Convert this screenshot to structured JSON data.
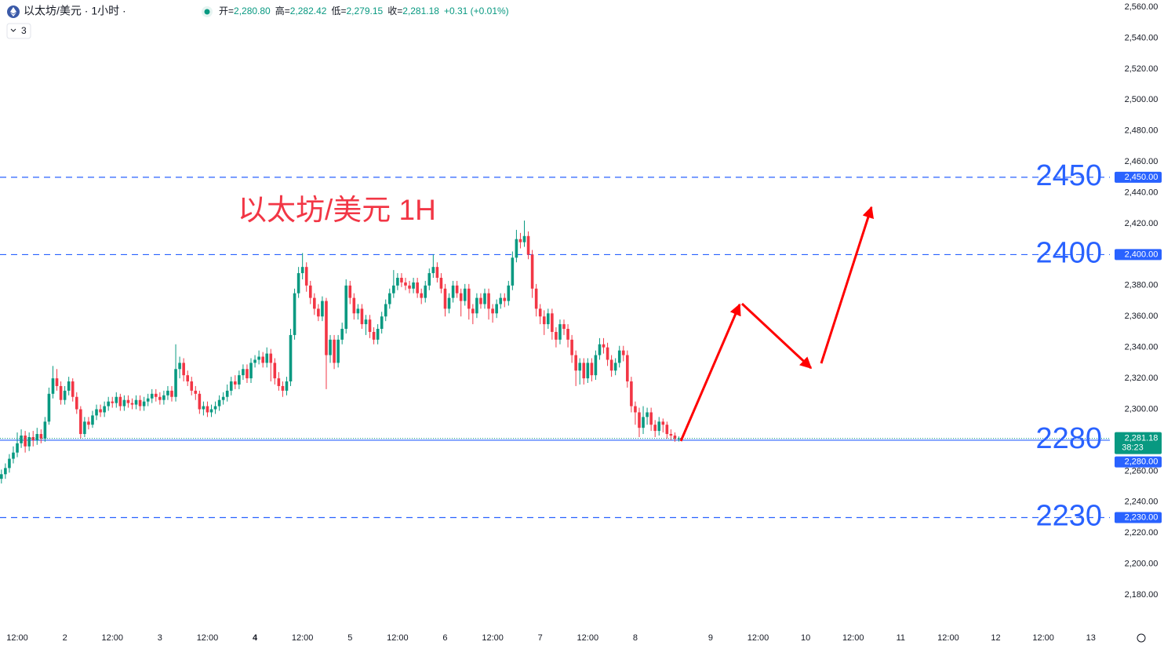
{
  "header": {
    "symbol": "以太坊/美元 · 1小时 ·",
    "indicators": "3",
    "ohlc": [
      {
        "k": "开=",
        "v": "2,280.80"
      },
      {
        "k": "高=",
        "v": "2,282.42"
      },
      {
        "k": "低=",
        "v": "2,279.15"
      },
      {
        "k": "收=",
        "v": "2,281.18"
      }
    ],
    "change": "+0.31 (+0.01%)"
  },
  "chart_data": {
    "type": "candlestick",
    "annotation": "以太坊/美元 1H",
    "up_color": "#089981",
    "down_color": "#f23645",
    "x": [
      -4,
      -3,
      -2,
      -1,
      0,
      1,
      2,
      3,
      4,
      5,
      6,
      7,
      8,
      9,
      10,
      11,
      12,
      13,
      14,
      15,
      16,
      17,
      18,
      19,
      20,
      21,
      22,
      23,
      24,
      25,
      26,
      27,
      28,
      29,
      30,
      31,
      32,
      33,
      34,
      35,
      36,
      37,
      38,
      39,
      40,
      41,
      42,
      43,
      44,
      45,
      46,
      47,
      48,
      49,
      50,
      51,
      52,
      53,
      54,
      55,
      56,
      57,
      58,
      59,
      60,
      61,
      62,
      63,
      64,
      65,
      66,
      67,
      68,
      69,
      70,
      71,
      72,
      73,
      74,
      75,
      76,
      77,
      78,
      79,
      80,
      81,
      82,
      83,
      84,
      85,
      86,
      87,
      88,
      89,
      90,
      91,
      92,
      93,
      94,
      95,
      96,
      97,
      98,
      99,
      100,
      101,
      102,
      103,
      104,
      105,
      106,
      107,
      108,
      109,
      110,
      111,
      112,
      113,
      114,
      115,
      116,
      117,
      118,
      119,
      120,
      121,
      122,
      123,
      124,
      125,
      126,
      127,
      128,
      129,
      130,
      131,
      132,
      133,
      134,
      135,
      136,
      137,
      138,
      139,
      140,
      141,
      142,
      143,
      144,
      145,
      146,
      147,
      148,
      149,
      150,
      151,
      152,
      153,
      154,
      155,
      156,
      157,
      158,
      159,
      160,
      161,
      162,
      163,
      164,
      165,
      166,
      167
    ],
    "open": [
      2255,
      2258,
      2262,
      2268,
      2272,
      2278,
      2283,
      2276,
      2282,
      2280,
      2284,
      2281,
      2292,
      2310,
      2320,
      2315,
      2306,
      2312,
      2318,
      2308,
      2300,
      2284,
      2292,
      2290,
      2296,
      2300,
      2298,
      2302,
      2305,
      2304,
      2308,
      2302,
      2306,
      2304,
      2303,
      2306,
      2302,
      2305,
      2307,
      2310,
      2308,
      2306,
      2309,
      2312,
      2308,
      2326,
      2330,
      2322,
      2318,
      2312,
      2310,
      2300,
      2302,
      2298,
      2300,
      2302,
      2306,
      2308,
      2312,
      2318,
      2316,
      2322,
      2326,
      2320,
      2330,
      2332,
      2334,
      2330,
      2336,
      2330,
      2320,
      2315,
      2312,
      2318,
      2348,
      2375,
      2388,
      2392,
      2380,
      2372,
      2365,
      2360,
      2370,
      2335,
      2345,
      2330,
      2345,
      2352,
      2380,
      2372,
      2362,
      2365,
      2355,
      2358,
      2350,
      2345,
      2352,
      2360,
      2368,
      2375,
      2380,
      2385,
      2382,
      2380,
      2378,
      2382,
      2375,
      2372,
      2380,
      2388,
      2392,
      2385,
      2378,
      2365,
      2372,
      2380,
      2375,
      2370,
      2378,
      2365,
      2362,
      2372,
      2368,
      2375,
      2365,
      2362,
      2368,
      2372,
      2370,
      2380,
      2398,
      2410,
      2408,
      2412,
      2400,
      2378,
      2365,
      2360,
      2355,
      2362,
      2350,
      2345,
      2355,
      2352,
      2345,
      2335,
      2325,
      2330,
      2320,
      2330,
      2322,
      2335,
      2342,
      2340,
      2332,
      2325,
      2330,
      2338,
      2335,
      2318,
      2302,
      2298,
      2288,
      2295,
      2298,
      2290,
      2286,
      2292,
      2290,
      2284,
      2283,
      2280.8
    ],
    "high": [
      2261,
      2265,
      2271,
      2276,
      2285,
      2287,
      2286,
      2285,
      2286,
      2288,
      2287,
      2295,
      2314,
      2328,
      2326,
      2318,
      2315,
      2321,
      2320,
      2311,
      2302,
      2295,
      2295,
      2299,
      2303,
      2303,
      2305,
      2308,
      2308,
      2311,
      2310,
      2309,
      2309,
      2307,
      2309,
      2309,
      2308,
      2310,
      2313,
      2313,
      2311,
      2312,
      2315,
      2315,
      2342,
      2334,
      2333,
      2325,
      2321,
      2315,
      2312,
      2305,
      2305,
      2303,
      2305,
      2309,
      2311,
      2316,
      2321,
      2322,
      2325,
      2329,
      2329,
      2333,
      2335,
      2338,
      2337,
      2340,
      2339,
      2333,
      2324,
      2318,
      2321,
      2352,
      2378,
      2392,
      2401,
      2395,
      2383,
      2375,
      2368,
      2373,
      2372,
      2348,
      2348,
      2348,
      2356,
      2384,
      2383,
      2375,
      2368,
      2368,
      2361,
      2361,
      2353,
      2355,
      2363,
      2371,
      2378,
      2390,
      2388,
      2388,
      2385,
      2383,
      2385,
      2385,
      2378,
      2383,
      2391,
      2400,
      2395,
      2388,
      2381,
      2375,
      2383,
      2383,
      2378,
      2381,
      2381,
      2368,
      2375,
      2375,
      2378,
      2378,
      2368,
      2371,
      2375,
      2375,
      2383,
      2402,
      2416,
      2414,
      2422,
      2415,
      2403,
      2381,
      2368,
      2364,
      2365,
      2365,
      2353,
      2358,
      2358,
      2355,
      2348,
      2338,
      2333,
      2333,
      2333,
      2333,
      2338,
      2346,
      2346,
      2343,
      2335,
      2333,
      2341,
      2341,
      2338,
      2321,
      2305,
      2301,
      2302,
      2301,
      2301,
      2293,
      2295,
      2294,
      2292,
      2287,
      2285,
      2282.42
    ],
    "low": [
      2252,
      2255,
      2259,
      2265,
      2269,
      2275,
      2272,
      2273,
      2276,
      2277,
      2278,
      2279,
      2290,
      2307,
      2312,
      2303,
      2303,
      2309,
      2305,
      2297,
      2281,
      2282,
      2287,
      2288,
      2293,
      2295,
      2295,
      2299,
      2301,
      2301,
      2299,
      2299,
      2301,
      2300,
      2300,
      2299,
      2299,
      2302,
      2304,
      2305,
      2303,
      2303,
      2306,
      2305,
      2305,
      2320,
      2318,
      2315,
      2309,
      2306,
      2297,
      2296,
      2295,
      2295,
      2297,
      2299,
      2303,
      2305,
      2309,
      2313,
      2313,
      2319,
      2317,
      2317,
      2327,
      2329,
      2327,
      2327,
      2318,
      2316,
      2312,
      2308,
      2309,
      2315,
      2345,
      2372,
      2384,
      2376,
      2368,
      2361,
      2357,
      2357,
      2313,
      2330,
      2326,
      2327,
      2342,
      2349,
      2368,
      2358,
      2358,
      2352,
      2348,
      2346,
      2342,
      2342,
      2349,
      2357,
      2365,
      2372,
      2377,
      2379,
      2377,
      2375,
      2375,
      2372,
      2368,
      2369,
      2377,
      2385,
      2382,
      2375,
      2360,
      2362,
      2369,
      2372,
      2360,
      2367,
      2358,
      2355,
      2359,
      2365,
      2365,
      2358,
      2356,
      2359,
      2365,
      2366,
      2367,
      2377,
      2395,
      2404,
      2405,
      2397,
      2372,
      2360,
      2355,
      2348,
      2352,
      2345,
      2340,
      2342,
      2348,
      2340,
      2330,
      2315,
      2316,
      2316,
      2317,
      2318,
      2319,
      2332,
      2336,
      2328,
      2321,
      2322,
      2327,
      2331,
      2314,
      2298,
      2290,
      2282,
      2284,
      2290,
      2286,
      2282,
      2283,
      2285,
      2281,
      2280,
      2279,
      2279.15
    ],
    "close": [
      2258,
      2262,
      2268,
      2272,
      2278,
      2283,
      2276,
      2282,
      2280,
      2284,
      2281,
      2292,
      2310,
      2320,
      2315,
      2306,
      2312,
      2318,
      2308,
      2300,
      2284,
      2292,
      2290,
      2296,
      2300,
      2298,
      2302,
      2305,
      2304,
      2308,
      2302,
      2306,
      2304,
      2303,
      2306,
      2302,
      2305,
      2307,
      2310,
      2308,
      2306,
      2309,
      2312,
      2308,
      2326,
      2330,
      2322,
      2318,
      2312,
      2310,
      2300,
      2302,
      2298,
      2300,
      2302,
      2306,
      2308,
      2312,
      2318,
      2316,
      2322,
      2326,
      2320,
      2330,
      2332,
      2334,
      2330,
      2336,
      2330,
      2320,
      2315,
      2312,
      2318,
      2348,
      2375,
      2388,
      2392,
      2380,
      2372,
      2365,
      2360,
      2370,
      2335,
      2345,
      2330,
      2345,
      2352,
      2380,
      2372,
      2362,
      2365,
      2355,
      2358,
      2350,
      2345,
      2352,
      2360,
      2368,
      2375,
      2380,
      2385,
      2382,
      2380,
      2378,
      2382,
      2375,
      2372,
      2380,
      2388,
      2392,
      2385,
      2378,
      2365,
      2372,
      2380,
      2375,
      2370,
      2378,
      2365,
      2362,
      2372,
      2368,
      2375,
      2365,
      2362,
      2368,
      2372,
      2370,
      2380,
      2398,
      2410,
      2408,
      2412,
      2400,
      2378,
      2365,
      2360,
      2355,
      2362,
      2350,
      2345,
      2355,
      2352,
      2345,
      2335,
      2325,
      2330,
      2320,
      2330,
      2322,
      2335,
      2342,
      2340,
      2332,
      2325,
      2330,
      2338,
      2335,
      2318,
      2302,
      2298,
      2288,
      2295,
      2298,
      2290,
      2286,
      2292,
      2290,
      2284,
      2283,
      2280.8,
      2281.18
    ],
    "xlim": [
      -4.36,
      275.8
    ],
    "xticks": [
      {
        "value": 0,
        "label": "12:00"
      },
      {
        "value": 12,
        "label": "2"
      },
      {
        "value": 24,
        "label": "12:00"
      },
      {
        "value": 36,
        "label": "3"
      },
      {
        "value": 48,
        "label": "12:00"
      },
      {
        "value": 60,
        "label": "4"
      },
      {
        "value": 72,
        "label": "12:00"
      },
      {
        "value": 84,
        "label": "5"
      },
      {
        "value": 96,
        "label": "12:00"
      },
      {
        "value": 108,
        "label": "6"
      },
      {
        "value": 120,
        "label": "12:00"
      },
      {
        "value": 132,
        "label": "7"
      },
      {
        "value": 144,
        "label": "12:00"
      },
      {
        "value": 156,
        "label": "8"
      },
      {
        "value": 175,
        "label": "9"
      },
      {
        "value": 187,
        "label": "12:00"
      },
      {
        "value": 199,
        "label": "10"
      },
      {
        "value": 211,
        "label": "12:00"
      },
      {
        "value": 223,
        "label": "11"
      },
      {
        "value": 235,
        "label": "12:00"
      },
      {
        "value": 247,
        "label": "12"
      },
      {
        "value": 259,
        "label": "12:00"
      },
      {
        "value": 271,
        "label": "13"
      }
    ],
    "ylim": [
      2158.7,
      2564.6
    ],
    "yticks": [
      {
        "value": 2180,
        "label": "2,180.00"
      },
      {
        "value": 2200,
        "label": "2,200.00"
      },
      {
        "value": 2220,
        "label": "2,220.00"
      },
      {
        "value": 2240,
        "label": "2,240.00"
      },
      {
        "value": 2260,
        "label": "2,260.00"
      },
      {
        "value": 2300,
        "label": "2,300.00"
      },
      {
        "value": 2320,
        "label": "2,320.00"
      },
      {
        "value": 2340,
        "label": "2,340.00"
      },
      {
        "value": 2360,
        "label": "2,360.00"
      },
      {
        "value": 2380,
        "label": "2,380.00"
      },
      {
        "value": 2420,
        "label": "2,420.00"
      },
      {
        "value": 2440,
        "label": "2,440.00"
      },
      {
        "value": 2460,
        "label": "2,460.00"
      },
      {
        "value": 2480,
        "label": "2,480.00"
      },
      {
        "value": 2500,
        "label": "2,500.00"
      },
      {
        "value": 2520,
        "label": "2,520.00"
      },
      {
        "value": 2540,
        "label": "2,540.00"
      },
      {
        "value": 2560,
        "label": "2,560.00"
      }
    ],
    "levels": [
      {
        "value": 2450,
        "label": "2450",
        "badge": "2,450.00",
        "style": "dashed"
      },
      {
        "value": 2400,
        "label": "2400",
        "badge": "2,400.00",
        "style": "dashed"
      },
      {
        "value": 2280,
        "label": "2280",
        "badge": "2,280.00",
        "style": "solid"
      },
      {
        "value": 2230,
        "label": "2230",
        "badge": "2,230.00",
        "style": "dashed"
      }
    ],
    "level_color": "#2962ff",
    "last_price": {
      "value": 2281.18,
      "label": "2,281.18",
      "countdown": "38:23"
    }
  }
}
